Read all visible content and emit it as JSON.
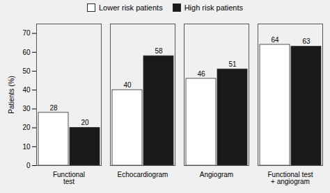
{
  "chart_data": {
    "type": "bar",
    "categories": [
      "Functional\ntest",
      "Echocardiogram",
      "Angiogram",
      "Functional test\n+ angiogram"
    ],
    "series": [
      {
        "name": "Lower risk patients",
        "color": "#ffffff",
        "values": [
          28,
          40,
          46,
          64
        ]
      },
      {
        "name": "High risk patients",
        "color": "#1a1a1a",
        "values": [
          20,
          58,
          51,
          63
        ]
      }
    ],
    "ylabel": "Patients (%)",
    "ylim": [
      0,
      75
    ],
    "yticks": [
      0,
      10,
      20,
      30,
      40,
      50,
      60,
      70
    ],
    "data_labels": true,
    "legend": "upper center",
    "grid": false
  }
}
